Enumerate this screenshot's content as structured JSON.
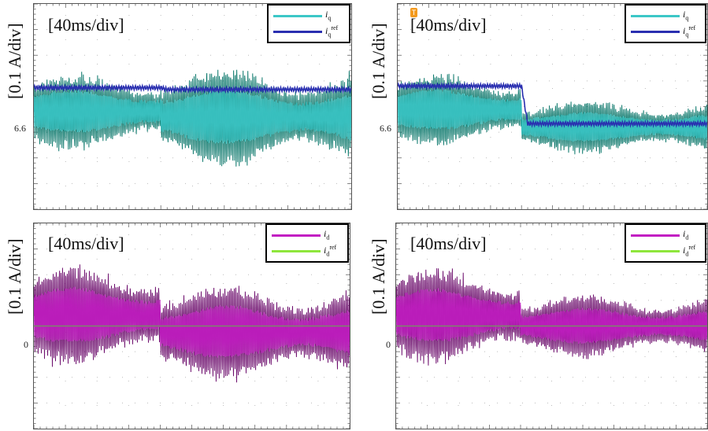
{
  "chart_data": [
    {
      "id": "top-left",
      "type": "line",
      "ylabel": "[0.1 A/div]",
      "timebase": "[40ms/div]",
      "ytick": {
        "label": "6.6",
        "value": 6.6
      },
      "ylim": [
        6.1,
        7.3
      ],
      "xlim": [
        0,
        10
      ],
      "x_divisions": 10,
      "y_divisions": 8,
      "grid": true,
      "legend_position": "top-right",
      "step_at_div": 4,
      "series": [
        {
          "name": "i_q",
          "label_main": "i",
          "label_sub": "q",
          "label_sup": "",
          "color": "#3cc7c7",
          "color_dark": "#0f7a6e",
          "kind": "ripple",
          "before": {
            "center": 6.67,
            "amplitude": 0.2
          },
          "after": {
            "center": 6.64,
            "amplitude": 0.26
          }
        },
        {
          "name": "i_q^ref",
          "label_main": "i",
          "label_sub": "q",
          "label_sup": "ref",
          "color": "#2a2fb0",
          "kind": "ref",
          "before": {
            "value": 6.81
          },
          "after": {
            "value": 6.8
          }
        }
      ]
    },
    {
      "id": "top-right",
      "type": "line",
      "ylabel": "[0.1 A/div]",
      "timebase": "[40ms/div]",
      "ytick": {
        "label": "6.6",
        "value": 6.6
      },
      "ylim": [
        6.1,
        7.3
      ],
      "xlim": [
        0,
        10
      ],
      "x_divisions": 10,
      "y_divisions": 8,
      "grid": true,
      "legend_position": "top-right",
      "step_at_div": 4,
      "marker": "T",
      "series": [
        {
          "name": "i_q",
          "label_main": "i",
          "label_sub": "q",
          "label_sup": "",
          "color": "#3cc7c7",
          "color_dark": "#0f7a6e",
          "kind": "ripple",
          "before": {
            "center": 6.68,
            "amplitude": 0.19
          },
          "after": {
            "center": 6.58,
            "amplitude": 0.14
          }
        },
        {
          "name": "i_q^ref",
          "label_main": "i",
          "label_sub": "q",
          "label_sup": "ref",
          "color": "#2a2fb0",
          "kind": "ref",
          "before": {
            "value": 6.82
          },
          "after": {
            "value": 6.6
          }
        }
      ]
    },
    {
      "id": "bottom-left",
      "type": "line",
      "ylabel": "[0.1 A/div]",
      "timebase": "[40ms/div]",
      "ytick": {
        "label": "0",
        "value": 0
      },
      "ylim": [
        -0.5,
        0.5
      ],
      "xlim": [
        0,
        10
      ],
      "x_divisions": 10,
      "y_divisions": 8,
      "grid": true,
      "legend_position": "top-right",
      "step_at_div": 4,
      "series": [
        {
          "name": "i_d",
          "label_main": "i",
          "label_sub": "d",
          "label_sup": "",
          "color": "#c21ec2",
          "color_dark": "#6e0f6e",
          "kind": "ripple",
          "before": {
            "center": 0.05,
            "amplitude": 0.22
          },
          "after": {
            "center": -0.03,
            "amplitude": 0.21
          }
        },
        {
          "name": "i_d^ref",
          "label_main": "i",
          "label_sub": "d",
          "label_sup": "ref",
          "color": "#8ee63c",
          "kind": "ref",
          "before": {
            "value": 0
          },
          "after": {
            "value": 0
          }
        }
      ]
    },
    {
      "id": "bottom-right",
      "type": "line",
      "ylabel": "[0.1 A/div]",
      "timebase": "[40ms/div]",
      "ytick": {
        "label": "0",
        "value": 0
      },
      "ylim": [
        -0.5,
        0.5
      ],
      "xlim": [
        0,
        10
      ],
      "x_divisions": 10,
      "y_divisions": 8,
      "grid": true,
      "legend_position": "top-right",
      "step_at_div": 4,
      "series": [
        {
          "name": "i_d",
          "label_main": "i",
          "label_sub": "d",
          "label_sup": "",
          "color": "#c21ec2",
          "color_dark": "#6e0f6e",
          "kind": "ripple",
          "before": {
            "center": 0.05,
            "amplitude": 0.21
          },
          "after": {
            "center": 0.0,
            "amplitude": 0.14
          }
        },
        {
          "name": "i_d^ref",
          "label_main": "i",
          "label_sub": "d",
          "label_sup": "ref",
          "color": "#8ee63c",
          "kind": "ref",
          "before": {
            "value": 0
          },
          "after": {
            "value": 0
          }
        }
      ]
    }
  ]
}
